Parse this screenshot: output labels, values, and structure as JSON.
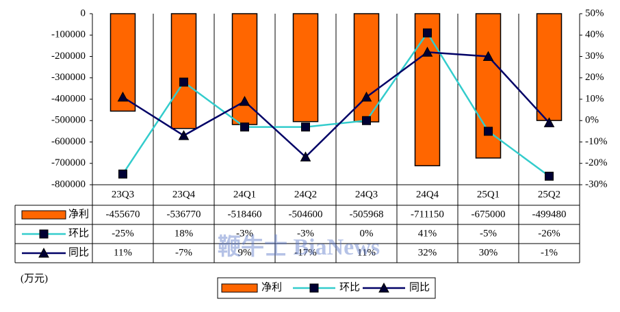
{
  "chart_data": {
    "type": "bar",
    "categories": [
      "23Q3",
      "23Q4",
      "24Q1",
      "24Q2",
      "24Q3",
      "24Q4",
      "25Q1",
      "25Q2"
    ],
    "series": [
      {
        "name": "净利",
        "type": "bar",
        "color": "#ff6600",
        "axis": "y",
        "values": [
          -455670,
          -536770,
          -518460,
          -504600,
          -505968,
          -711150,
          -675000,
          -499480
        ]
      },
      {
        "name": "环比",
        "type": "line",
        "color": "#33cccc",
        "marker": "square",
        "marker_color": "#000033",
        "axis": "y2",
        "values": [
          -25,
          18,
          -3,
          -3,
          0,
          41,
          -5,
          -26
        ],
        "value_labels": [
          "-25%",
          "18%",
          "-3%",
          "-3%",
          "0%",
          "41%",
          "-5%",
          "-26%"
        ]
      },
      {
        "name": "同比",
        "type": "line",
        "color": "#000066",
        "marker": "triangle",
        "marker_color": "#000033",
        "axis": "y2",
        "values": [
          11,
          -7,
          9,
          -17,
          11,
          32,
          30,
          -1
        ],
        "value_labels": [
          "11%",
          "-7%",
          "9%",
          "-17%",
          "11%",
          "32%",
          "30%",
          "-1%"
        ]
      }
    ],
    "ylim": [
      -800000,
      0
    ],
    "yticks": [
      0,
      -100000,
      -200000,
      -300000,
      -400000,
      -500000,
      -600000,
      -700000,
      -800000
    ],
    "y2lim": [
      -30,
      50
    ],
    "y2ticks": [
      {
        "value": 50,
        "label": "50%"
      },
      {
        "value": 40,
        "label": "40%"
      },
      {
        "value": 30,
        "label": "30%"
      },
      {
        "value": 20,
        "label": "20%"
      },
      {
        "value": 10,
        "label": "10%"
      },
      {
        "value": 0,
        "label": "0%"
      },
      {
        "value": -10,
        "label": "-10%"
      },
      {
        "value": -20,
        "label": "-20%"
      },
      {
        "value": -30,
        "label": "-30%"
      }
    ],
    "unit_label": "(万元)",
    "watermark": "鞭牛士 BiaNews"
  }
}
